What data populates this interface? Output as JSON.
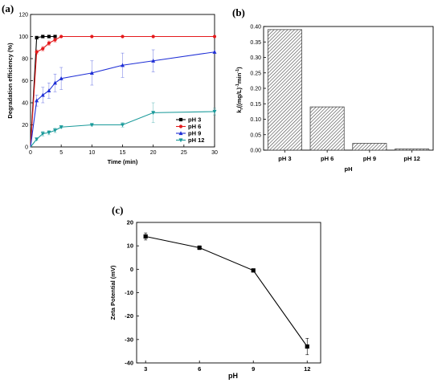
{
  "chart_data": [
    {
      "panel": "(a)",
      "type": "line",
      "xlabel": "Time (min)",
      "ylabel": "Degradation efficiency (%)",
      "xlim": [
        0,
        30
      ],
      "ylim": [
        0,
        120
      ],
      "xticks": [
        0,
        5,
        10,
        15,
        20,
        25,
        30
      ],
      "yticks": [
        0,
        20,
        40,
        60,
        80,
        100,
        120
      ],
      "grid": false,
      "legend_position": "bottom-right",
      "series": [
        {
          "name": "pH 3",
          "color": "#000000",
          "marker": "square",
          "x": [
            0,
            1,
            2,
            3,
            4
          ],
          "y": [
            0,
            99,
            100,
            100,
            100
          ],
          "err": [
            0,
            0,
            0,
            0,
            0
          ]
        },
        {
          "name": "pH 6",
          "color": "#e41a1c",
          "marker": "circle",
          "x": [
            0,
            1,
            2,
            3,
            4,
            5,
            10,
            15,
            20,
            30
          ],
          "y": [
            0,
            86,
            89,
            94,
            97,
            100,
            100,
            100,
            100,
            100
          ],
          "err": [
            0,
            2,
            2,
            2,
            2,
            0,
            0,
            0,
            0,
            0
          ]
        },
        {
          "name": "pH 9",
          "color": "#1f2fd6",
          "marker": "triangle-up",
          "x": [
            0,
            1,
            2,
            3,
            4,
            5,
            10,
            15,
            20,
            30
          ],
          "y": [
            0,
            42,
            47,
            51,
            58,
            62,
            67,
            74,
            78,
            86
          ],
          "err": [
            0,
            5,
            7,
            7,
            8,
            10,
            11,
            11,
            10,
            0
          ]
        },
        {
          "name": "pH 12",
          "color": "#1a9a9a",
          "marker": "triangle-down",
          "x": [
            0,
            1,
            2,
            3,
            4,
            5,
            10,
            15,
            20,
            30
          ],
          "y": [
            0,
            7,
            12,
            13,
            15,
            18,
            20,
            20,
            31,
            32
          ],
          "err": [
            0,
            1,
            2,
            2,
            2,
            1,
            1,
            2,
            9,
            3
          ]
        }
      ]
    },
    {
      "panel": "(b)",
      "type": "bar",
      "xlabel": "pH",
      "ylabel": "k_r ((mg/L)^-1 min^-1)",
      "ylabel_base": "k",
      "ylabel_sub": "r",
      "ylabel_mid": "((mg/L)",
      "ylabel_sup1": "-1",
      "ylabel_mid2": "min",
      "ylabel_sup2": "-1",
      "ylabel_end": ")",
      "categories": [
        "pH 3",
        "pH 6",
        "pH 9",
        "pH 12"
      ],
      "values": [
        0.39,
        0.14,
        0.022,
        0.004
      ],
      "ylim": [
        0,
        0.4
      ],
      "yticks": [
        "0.00",
        "0.05",
        "0.10",
        "0.15",
        "0.20",
        "0.25",
        "0.30",
        "0.35",
        "0.40"
      ],
      "bar_pattern": "diagonal-hatch",
      "grid": false
    },
    {
      "panel": "(c)",
      "type": "line",
      "xlabel": "pH",
      "ylabel": "Zeta Potential  (mV)",
      "x": [
        3,
        6,
        9,
        12
      ],
      "y": [
        14,
        9.2,
        -0.5,
        -33
      ],
      "err": [
        1.5,
        0.8,
        0.5,
        3.5
      ],
      "xticks": [
        "3",
        "6",
        "9",
        "12"
      ],
      "yticks": [
        "-40",
        "-30",
        "-20",
        "-10",
        "0",
        "10",
        "20"
      ],
      "ylim": [
        -40,
        20
      ],
      "marker": "square",
      "color": "#000000",
      "grid": false
    }
  ]
}
